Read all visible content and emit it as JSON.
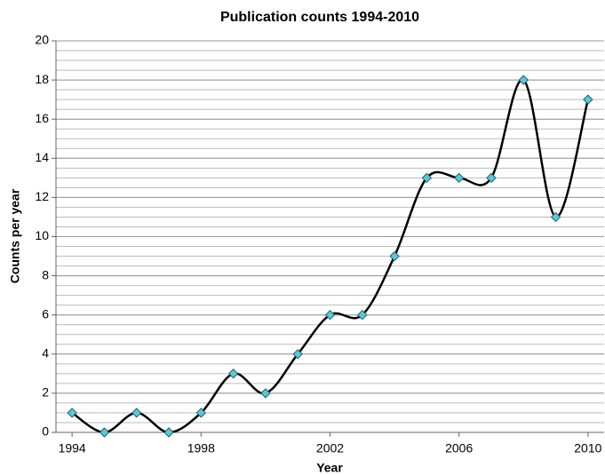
{
  "chart_data": {
    "type": "line",
    "title": "Publication counts 1994-2010",
    "x_label": "Year",
    "y_label": "Counts per year",
    "x": [
      1994,
      1995,
      1996,
      1997,
      1998,
      1999,
      2000,
      2001,
      2002,
      2003,
      2004,
      2005,
      2006,
      2007,
      2008,
      2009,
      2010
    ],
    "series": [
      {
        "color": "#5bc8d8",
        "line_color": "#000000",
        "values": [
          1,
          0,
          1,
          0,
          1,
          3,
          2,
          4,
          6,
          6,
          9,
          13,
          13,
          13,
          18,
          11,
          17
        ]
      }
    ],
    "xlim": [
      1993.5,
      2010.5
    ],
    "xticks": [
      1994,
      1998,
      2002,
      2006,
      2010
    ],
    "ylim": [
      0,
      20
    ],
    "yticks": [
      0,
      2,
      4,
      6,
      8,
      10,
      12,
      14,
      16,
      18,
      20
    ],
    "grid": true,
    "minor_grid_step": 0.5,
    "smooth": true
  }
}
